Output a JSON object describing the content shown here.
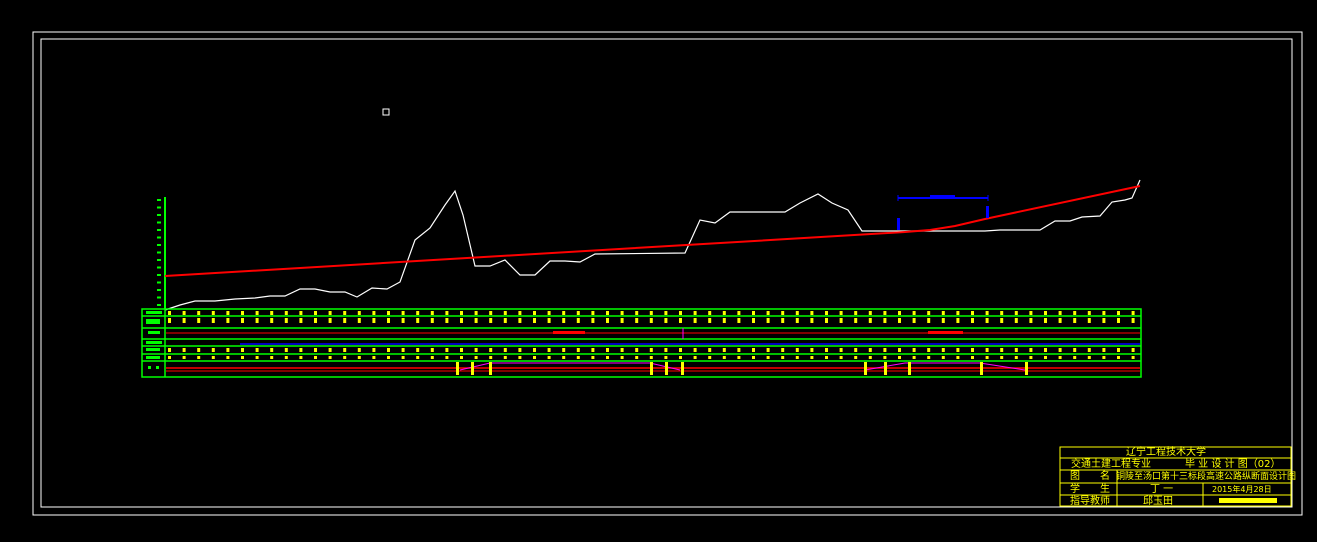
{
  "colors": {
    "background": "#000000",
    "frame": "#ffffff",
    "band": "#00ff00",
    "ground": "#ffffff",
    "design": "#ff0000",
    "curve": "#0000ff",
    "marks": "#ffff00",
    "magenta": "#ff00ff"
  },
  "title_block": {
    "university": "辽宁工程技术大学",
    "major": "交通土建工程专业",
    "drawing_type": "毕 业 设 计 图（02）",
    "drawing_name_label": "图　　名",
    "drawing_name": "铜陵至汤口第十三标段高速公路纵断面设计图",
    "student_label": "学　　生",
    "student": "丁 一",
    "date": "2015年4月28日",
    "advisor_label": "指导教师",
    "advisor": "邱玉田"
  }
}
